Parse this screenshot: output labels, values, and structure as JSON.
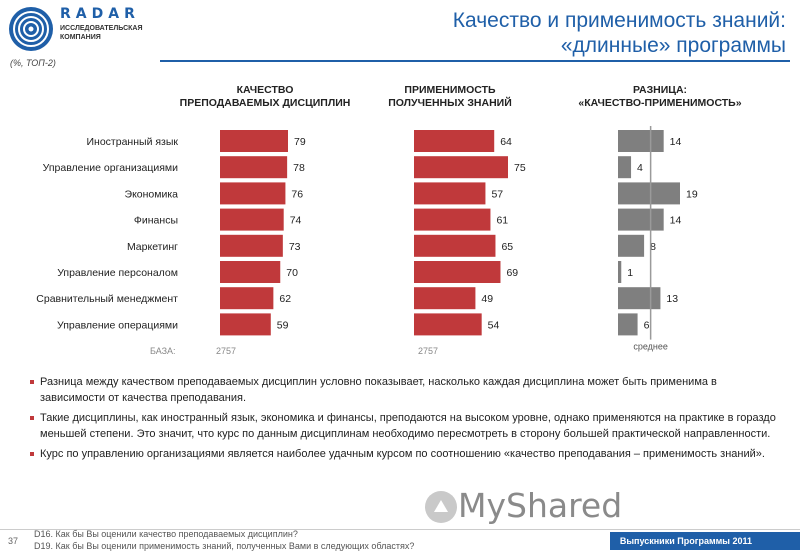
{
  "header": {
    "brand_name": "RADAR",
    "brand_sub_line1": "ИССЛЕДОВАТЕЛЬСКАЯ",
    "brand_sub_line2": "КОМПАНИЯ",
    "title_line1": "Качество и применимость знаний:",
    "title_line2": "«длинные» программы",
    "unit_note": "(%, ТОП-2)"
  },
  "chart_data": {
    "type": "bar",
    "categories": [
      "Иностранный язык",
      "Управление организациями",
      "Экономика",
      "Финансы",
      "Маркетинг",
      "Управление персоналом",
      "Сравнительный менеджмент",
      "Управление операциями"
    ],
    "series": [
      {
        "name": "КАЧЕСТВО ПРЕПОДАВАЕМЫХ ДИСЦИПЛИН",
        "values": [
          79,
          78,
          76,
          74,
          73,
          70,
          62,
          59
        ],
        "color": "#c0393b"
      },
      {
        "name": "ПРИМЕНИМОСТЬ ПОЛУЧЕННЫХ ЗНАНИЙ",
        "values": [
          64,
          75,
          57,
          61,
          65,
          69,
          49,
          54
        ],
        "color": "#c0393b"
      },
      {
        "name": "РАЗНИЦА: «КАЧЕСТВО-ПРИМЕНИМОСТЬ»",
        "values": [
          14,
          4,
          19,
          14,
          8,
          1,
          13,
          6
        ],
        "color": "#7f7f7f"
      }
    ],
    "headers": [
      [
        "КАЧЕСТВО",
        "ПРЕПОДАВАЕМЫХ ДИСЦИПЛИН"
      ],
      [
        "ПРИМЕНИМОСТЬ",
        "ПОЛУЧЕННЫХ ЗНАНИЙ"
      ],
      [
        "РАЗНИЦА:",
        "«КАЧЕСТВО-ПРИМЕНИМОСТЬ»"
      ]
    ],
    "diff_average": 10,
    "diff_average_label": "среднее",
    "base_label": "БАЗА:",
    "base_values": [
      "2757",
      "2757"
    ]
  },
  "bullets": [
    "Разница между качеством преподаваемых дисциплин условно показывает, насколько каждая дисциплина может быть применима в зависимости от качества преподавания.",
    "Такие дисциплины, как иностранный язык, экономика и финансы, преподаются на высоком уровне, однако применяются на практике в гораздо меньшей степени. Это значит, что курс по данным дисциплинам необходимо пересмотреть в сторону большей практической направленности.",
    "Курс по управлению организациями является наиболее удачным курсом по соотношению «качество преподавания – применимость знаний»."
  ],
  "footer": {
    "page_number": "37",
    "question1": "D16. Как бы Вы оценили качество преподаваемых дисциплин?",
    "question2": "D19. Как бы Вы оценили применимость знаний, полученных Вами в следующих областях?",
    "bar_text": "Выпускники Программы 2011"
  },
  "watermark": "MyShared",
  "colors": {
    "brand": "#1f5fa8",
    "bar": "#c0393b",
    "diff_bar": "#7f7f7f"
  }
}
